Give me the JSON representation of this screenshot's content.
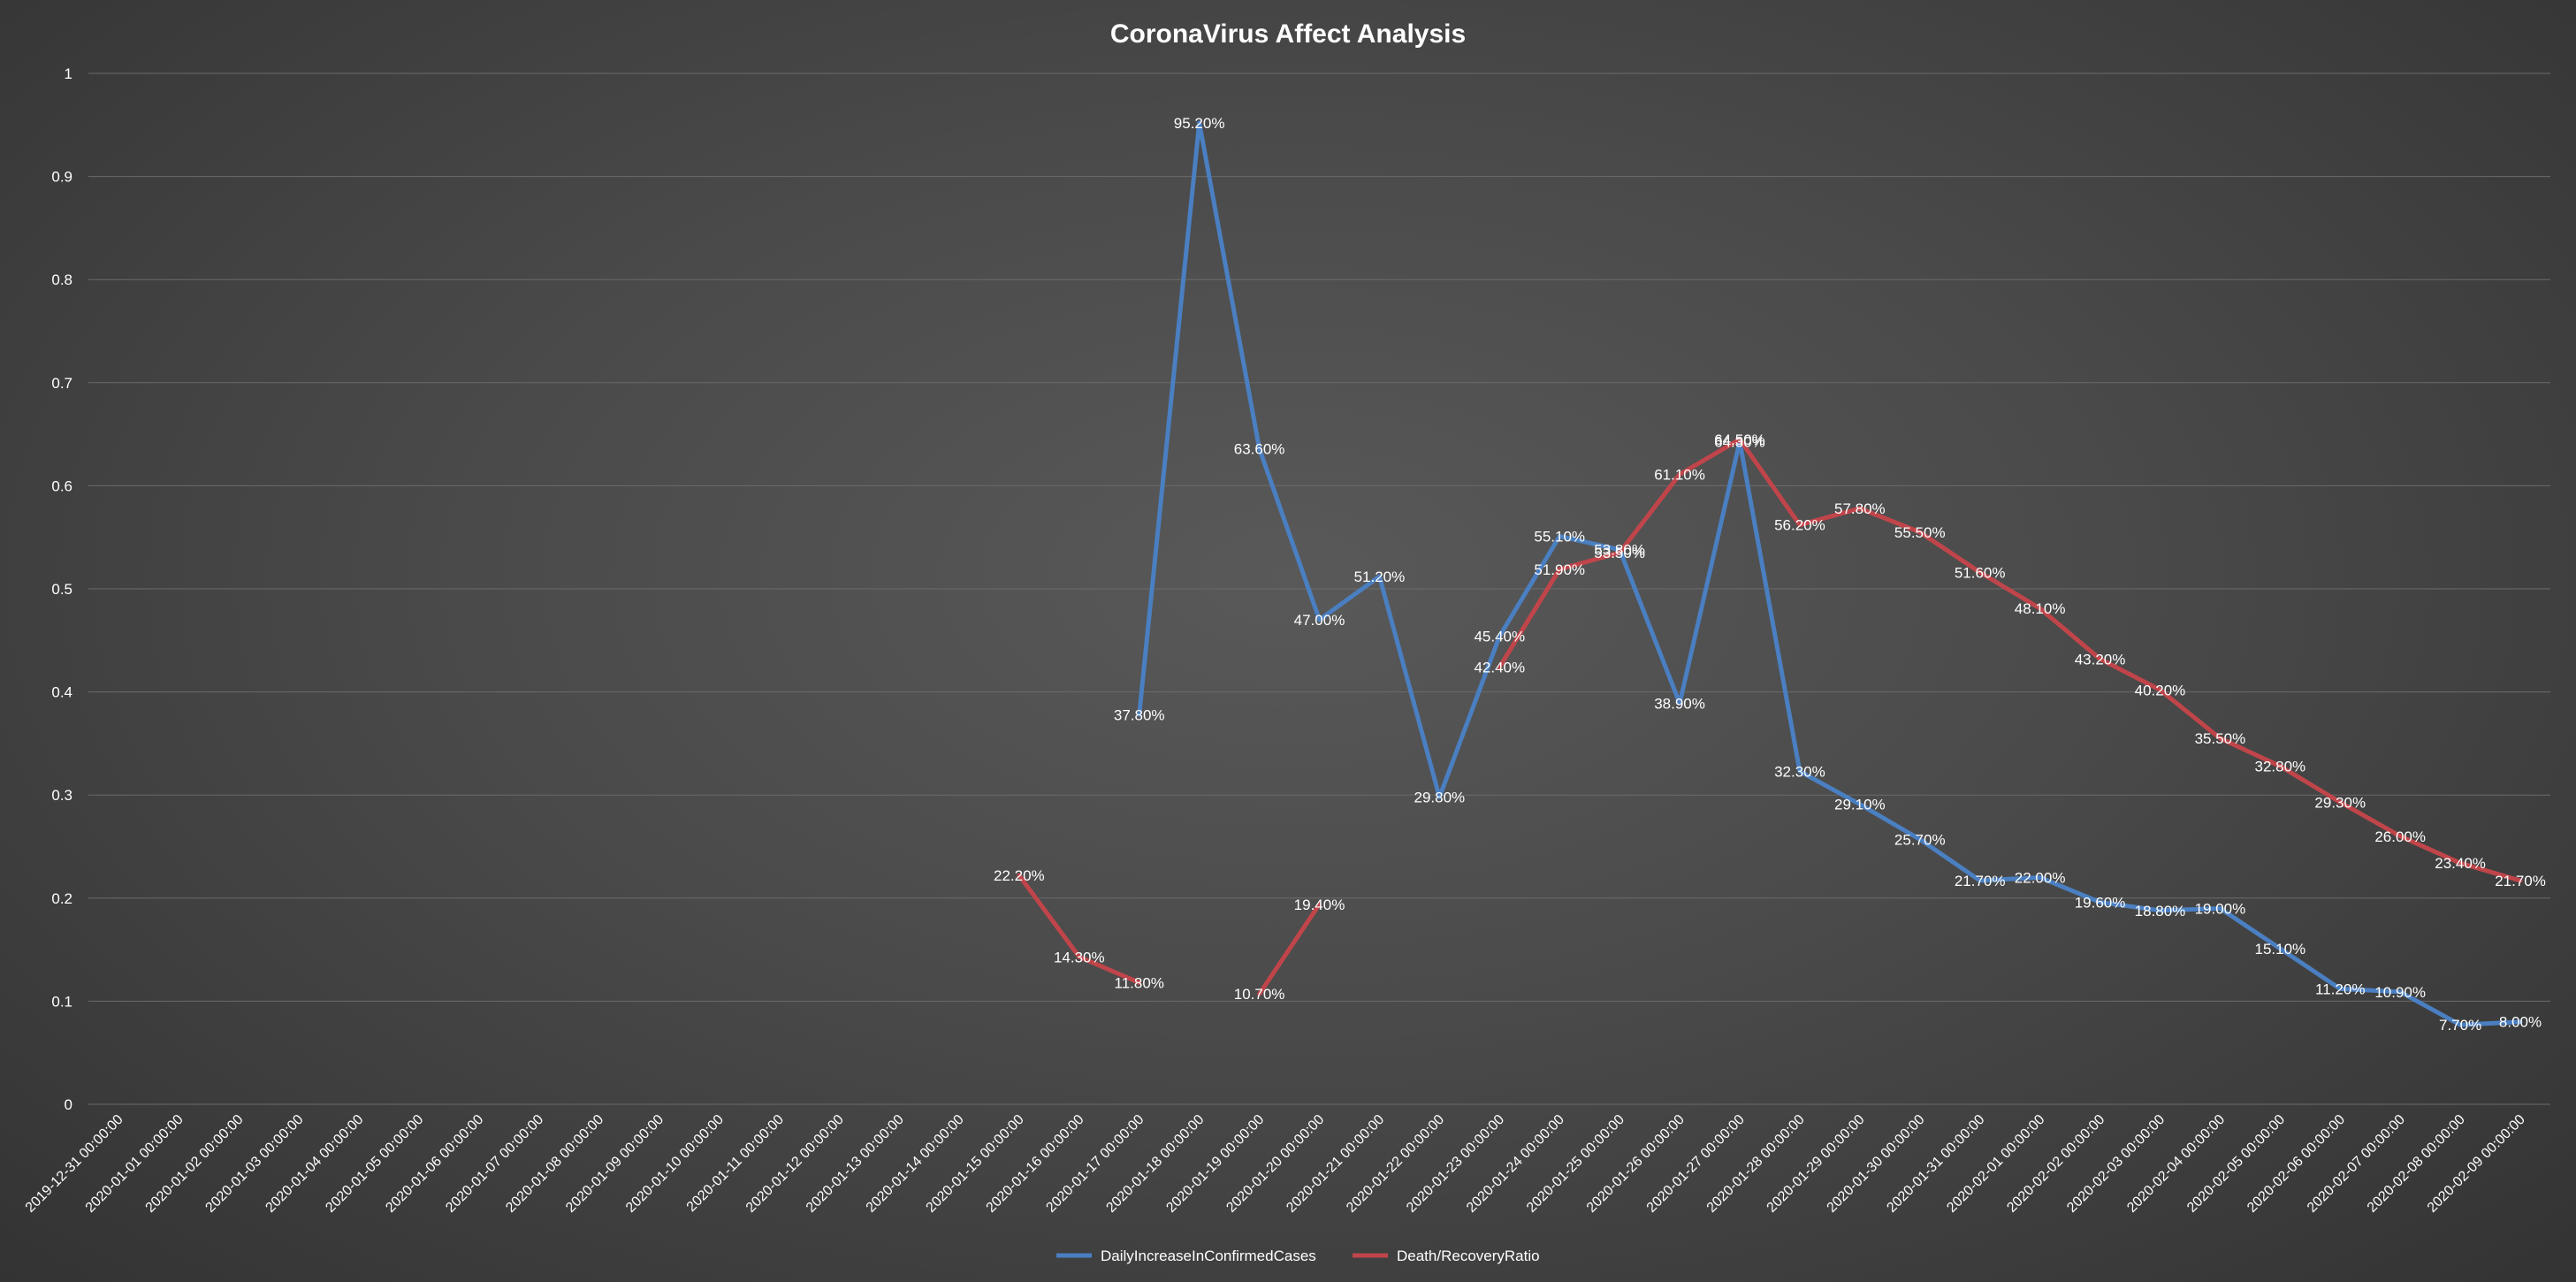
{
  "colors": {
    "series_blue": "#4a7fc1",
    "series_red": "#c0454a",
    "gridline": "#6b6b6b",
    "text": "#ffffff"
  },
  "chart_data": {
    "type": "line",
    "title": "CoronaVirus Affect Analysis",
    "xlabel": "",
    "ylabel": "",
    "ylim": [
      0,
      1
    ],
    "yticks": [
      "0",
      "0.1",
      "0.2",
      "0.3",
      "0.4",
      "0.5",
      "0.6",
      "0.7",
      "0.8",
      "0.9",
      "1"
    ],
    "grid": true,
    "legend_position": "bottom",
    "categories": [
      "2019-12-31 00:00:00",
      "2020-01-01 00:00:00",
      "2020-01-02 00:00:00",
      "2020-01-03 00:00:00",
      "2020-01-04 00:00:00",
      "2020-01-05 00:00:00",
      "2020-01-06 00:00:00",
      "2020-01-07 00:00:00",
      "2020-01-08 00:00:00",
      "2020-01-09 00:00:00",
      "2020-01-10 00:00:00",
      "2020-01-11 00:00:00",
      "2020-01-12 00:00:00",
      "2020-01-13 00:00:00",
      "2020-01-14 00:00:00",
      "2020-01-15 00:00:00",
      "2020-01-16 00:00:00",
      "2020-01-17 00:00:00",
      "2020-01-18 00:00:00",
      "2020-01-19 00:00:00",
      "2020-01-20 00:00:00",
      "2020-01-21 00:00:00",
      "2020-01-22 00:00:00",
      "2020-01-23 00:00:00",
      "2020-01-24 00:00:00",
      "2020-01-25 00:00:00",
      "2020-01-26 00:00:00",
      "2020-01-27 00:00:00",
      "2020-01-28 00:00:00",
      "2020-01-29 00:00:00",
      "2020-01-30 00:00:00",
      "2020-01-31 00:00:00",
      "2020-02-01 00:00:00",
      "2020-02-02 00:00:00",
      "2020-02-03 00:00:00",
      "2020-02-04 00:00:00",
      "2020-02-05 00:00:00",
      "2020-02-06 00:00:00",
      "2020-02-07 00:00:00",
      "2020-02-08 00:00:00",
      "2020-02-09 00:00:00"
    ],
    "series": [
      {
        "name": "DailyIncreaseInConfirmedCases",
        "color": "#4a7fc1",
        "values": [
          null,
          null,
          null,
          null,
          null,
          null,
          null,
          null,
          null,
          null,
          null,
          null,
          null,
          null,
          null,
          null,
          null,
          0.378,
          0.952,
          0.636,
          0.47,
          0.512,
          0.298,
          0.454,
          0.551,
          0.538,
          0.389,
          0.643,
          0.323,
          0.291,
          0.257,
          0.217,
          0.22,
          0.196,
          0.188,
          0.19,
          0.151,
          0.112,
          0.109,
          0.077,
          0.08
        ],
        "labels": [
          null,
          null,
          null,
          null,
          null,
          null,
          null,
          null,
          null,
          null,
          null,
          null,
          null,
          null,
          null,
          null,
          null,
          "37.80%",
          "95.20%",
          "63.60%",
          "47.00%",
          "51.20%",
          "29.80%",
          "45.40%",
          "55.10%",
          "53.80%",
          "38.90%",
          "64.30%",
          "32.30%",
          "29.10%",
          "25.70%",
          "21.70%",
          "22.00%",
          "19.60%",
          "18.80%",
          "19.00%",
          "15.10%",
          "11.20%",
          "10.90%",
          "7.70%",
          "8.00%"
        ]
      },
      {
        "name": "Death/RecoveryRatio",
        "color": "#c0454a",
        "values": [
          null,
          null,
          null,
          null,
          null,
          null,
          null,
          null,
          null,
          null,
          null,
          null,
          null,
          null,
          null,
          0.222,
          0.143,
          0.118,
          null,
          0.107,
          0.194,
          null,
          null,
          0.424,
          0.519,
          0.535,
          0.611,
          0.645,
          0.562,
          0.578,
          0.555,
          0.516,
          0.481,
          0.432,
          0.402,
          0.355,
          0.328,
          0.293,
          0.26,
          0.234,
          0.217
        ],
        "labels": [
          null,
          null,
          null,
          null,
          null,
          null,
          null,
          null,
          null,
          null,
          null,
          null,
          null,
          null,
          null,
          "22.20%",
          "14.30%",
          "11.80%",
          null,
          "10.70%",
          "19.40%",
          null,
          null,
          "42.40%",
          "51.90%",
          "53.50%",
          "61.10%",
          "64.50%",
          "56.20%",
          "57.80%",
          "55.50%",
          "51.60%",
          "48.10%",
          "43.20%",
          "40.20%",
          "35.50%",
          "32.80%",
          "29.30%",
          "26.00%",
          "23.40%",
          "21.70%"
        ]
      }
    ]
  }
}
